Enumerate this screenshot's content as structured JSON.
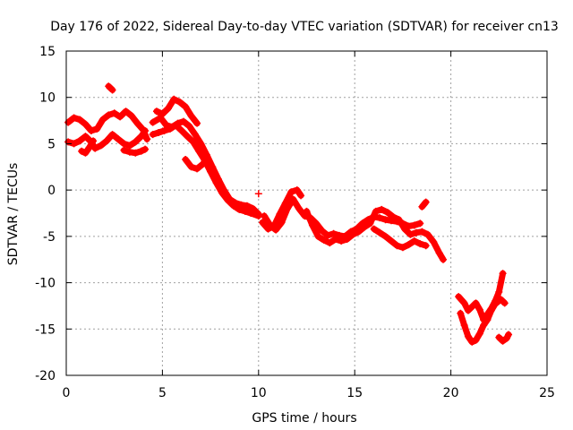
{
  "chart_data": {
    "type": "scatter",
    "title": "Day 176 of 2022, Sidereal Day-to-day VTEC variation (SDTVAR) for receiver cn13",
    "xlabel": "GPS time / hours",
    "ylabel": "SDTVAR / TECUs",
    "xlim": [
      0,
      25
    ],
    "ylim": [
      -20,
      15
    ],
    "xticks": [
      0,
      5,
      10,
      15,
      20,
      25
    ],
    "yticks": [
      15,
      10,
      5,
      0,
      -5,
      -10,
      -15,
      -20
    ],
    "grid": true,
    "marker": "+",
    "series_color": "#ff0000",
    "tracks": [
      [
        [
          0.1,
          7.3
        ],
        [
          0.4,
          7.8
        ],
        [
          0.7,
          7.6
        ],
        [
          1.0,
          7.1
        ],
        [
          1.3,
          6.4
        ],
        [
          1.6,
          6.6
        ],
        [
          1.9,
          7.6
        ],
        [
          2.2,
          8.1
        ],
        [
          2.5,
          8.3
        ],
        [
          2.8,
          7.9
        ],
        [
          3.1,
          8.5
        ],
        [
          3.4,
          8.0
        ],
        [
          3.7,
          7.2
        ],
        [
          4.0,
          6.5
        ],
        [
          4.2,
          5.5
        ]
      ],
      [
        [
          0.1,
          5.2
        ],
        [
          0.4,
          5.0
        ],
        [
          0.7,
          5.3
        ],
        [
          1.0,
          5.8
        ],
        [
          1.3,
          5.2
        ],
        [
          1.5,
          4.5
        ],
        [
          1.8,
          4.8
        ],
        [
          2.1,
          5.3
        ],
        [
          2.4,
          6.0
        ],
        [
          2.7,
          5.5
        ],
        [
          3.0,
          5.0
        ],
        [
          3.3,
          4.8
        ],
        [
          3.6,
          5.2
        ],
        [
          3.9,
          5.8
        ],
        [
          4.1,
          6.4
        ]
      ],
      [
        [
          0.8,
          4.2
        ],
        [
          1.0,
          4.0
        ],
        [
          1.2,
          4.6
        ],
        [
          1.4,
          5.3
        ]
      ],
      [
        [
          2.2,
          11.2
        ],
        [
          2.4,
          10.8
        ]
      ],
      [
        [
          3.0,
          4.3
        ],
        [
          3.3,
          4.1
        ],
        [
          3.6,
          4.0
        ],
        [
          3.9,
          4.2
        ],
        [
          4.1,
          4.4
        ]
      ],
      [
        [
          4.5,
          7.3
        ],
        [
          4.9,
          7.8
        ],
        [
          5.2,
          7.0
        ],
        [
          5.5,
          6.8
        ],
        [
          5.8,
          7.2
        ],
        [
          6.1,
          7.4
        ],
        [
          6.4,
          6.9
        ],
        [
          6.7,
          6.0
        ],
        [
          7.0,
          5.0
        ],
        [
          7.3,
          3.8
        ],
        [
          7.6,
          2.5
        ],
        [
          7.9,
          1.2
        ],
        [
          8.2,
          0.0
        ],
        [
          8.5,
          -1.0
        ],
        [
          8.8,
          -1.4
        ],
        [
          9.1,
          -1.6
        ],
        [
          9.4,
          -1.7
        ],
        [
          9.7,
          -2.0
        ],
        [
          10.0,
          -2.6
        ]
      ],
      [
        [
          4.5,
          6.0
        ],
        [
          4.8,
          6.2
        ],
        [
          5.1,
          6.4
        ],
        [
          5.4,
          6.6
        ],
        [
          5.7,
          7.0
        ],
        [
          6.0,
          6.4
        ],
        [
          6.3,
          5.8
        ],
        [
          6.6,
          5.2
        ],
        [
          6.9,
          4.2
        ],
        [
          7.2,
          3.2
        ],
        [
          7.5,
          2.0
        ],
        [
          7.8,
          0.8
        ],
        [
          8.1,
          -0.3
        ],
        [
          8.4,
          -1.1
        ],
        [
          8.7,
          -1.7
        ],
        [
          9.0,
          -2.1
        ],
        [
          9.3,
          -2.3
        ],
        [
          9.6,
          -2.5
        ],
        [
          10.0,
          -2.8
        ]
      ],
      [
        [
          4.7,
          8.5
        ],
        [
          5.0,
          8.2
        ],
        [
          5.3,
          8.8
        ],
        [
          5.6,
          9.8
        ],
        [
          5.9,
          9.5
        ],
        [
          6.2,
          9.0
        ],
        [
          6.5,
          8.0
        ],
        [
          6.8,
          7.2
        ]
      ],
      [
        [
          6.2,
          3.3
        ],
        [
          6.5,
          2.5
        ],
        [
          6.8,
          2.3
        ],
        [
          7.1,
          2.8
        ],
        [
          7.3,
          3.4
        ]
      ],
      [
        [
          10.0,
          -0.4
        ]
      ],
      [
        [
          10.3,
          -2.8
        ],
        [
          10.6,
          -3.8
        ],
        [
          10.9,
          -4.3
        ],
        [
          11.2,
          -3.5
        ],
        [
          11.5,
          -2.0
        ],
        [
          11.8,
          -1.0
        ],
        [
          12.1,
          -2.0
        ],
        [
          12.4,
          -2.8
        ],
        [
          12.7,
          -3.0
        ],
        [
          13.0,
          -3.6
        ],
        [
          13.3,
          -4.4
        ],
        [
          13.6,
          -4.9
        ],
        [
          13.9,
          -4.7
        ],
        [
          14.2,
          -4.9
        ],
        [
          14.5,
          -5.0
        ],
        [
          14.8,
          -4.5
        ],
        [
          15.1,
          -4.2
        ],
        [
          15.4,
          -3.6
        ],
        [
          15.7,
          -3.2
        ],
        [
          16.0,
          -2.9
        ],
        [
          16.3,
          -3.0
        ],
        [
          16.6,
          -3.2
        ],
        [
          16.9,
          -3.3
        ],
        [
          17.2,
          -3.4
        ],
        [
          17.5,
          -3.6
        ],
        [
          17.8,
          -3.9
        ],
        [
          18.1,
          -3.8
        ],
        [
          18.4,
          -3.6
        ]
      ],
      [
        [
          10.2,
          -3.5
        ],
        [
          10.5,
          -4.2
        ],
        [
          10.8,
          -3.9
        ],
        [
          11.1,
          -2.6
        ],
        [
          11.4,
          -1.4
        ],
        [
          11.7,
          -0.2
        ],
        [
          12.0,
          0.0
        ],
        [
          12.2,
          -0.6
        ]
      ],
      [
        [
          12.5,
          -2.3
        ],
        [
          12.8,
          -3.8
        ],
        [
          13.1,
          -5.0
        ],
        [
          13.4,
          -5.4
        ],
        [
          13.7,
          -5.7
        ],
        [
          14.0,
          -5.3
        ],
        [
          14.3,
          -5.5
        ],
        [
          14.6,
          -5.3
        ],
        [
          14.9,
          -4.8
        ],
        [
          15.2,
          -4.5
        ],
        [
          15.5,
          -4.0
        ],
        [
          15.8,
          -3.6
        ],
        [
          16.1,
          -2.3
        ],
        [
          16.4,
          -2.1
        ],
        [
          16.7,
          -2.4
        ],
        [
          17.0,
          -2.9
        ],
        [
          17.3,
          -3.2
        ],
        [
          17.6,
          -4.2
        ],
        [
          17.9,
          -4.8
        ],
        [
          18.2,
          -4.6
        ],
        [
          18.5,
          -4.5
        ],
        [
          18.8,
          -4.8
        ],
        [
          19.1,
          -5.6
        ],
        [
          19.4,
          -6.8
        ],
        [
          19.6,
          -7.5
        ]
      ],
      [
        [
          16.0,
          -4.2
        ],
        [
          16.3,
          -4.6
        ],
        [
          16.6,
          -5.0
        ],
        [
          16.9,
          -5.5
        ],
        [
          17.2,
          -6.0
        ],
        [
          17.5,
          -6.2
        ],
        [
          17.8,
          -5.9
        ],
        [
          18.1,
          -5.5
        ],
        [
          18.4,
          -5.8
        ],
        [
          18.7,
          -6.0
        ]
      ],
      [
        [
          18.5,
          -1.8
        ],
        [
          18.7,
          -1.3
        ]
      ],
      [
        [
          20.4,
          -11.5
        ],
        [
          20.7,
          -12.2
        ],
        [
          20.9,
          -13.0
        ],
        [
          21.1,
          -12.6
        ],
        [
          21.3,
          -12.2
        ],
        [
          21.5,
          -12.9
        ],
        [
          21.7,
          -14.0
        ],
        [
          21.9,
          -13.4
        ],
        [
          22.1,
          -12.8
        ],
        [
          22.3,
          -12.0
        ],
        [
          22.5,
          -11.0
        ],
        [
          22.7,
          -9.0
        ]
      ],
      [
        [
          20.5,
          -13.3
        ],
        [
          20.7,
          -14.6
        ],
        [
          20.9,
          -15.8
        ],
        [
          21.1,
          -16.4
        ],
        [
          21.3,
          -16.2
        ],
        [
          21.5,
          -15.5
        ],
        [
          21.7,
          -14.6
        ],
        [
          21.9,
          -14.0
        ],
        [
          22.1,
          -13.0
        ],
        [
          22.3,
          -12.3
        ],
        [
          22.6,
          -11.8
        ],
        [
          22.8,
          -12.2
        ]
      ],
      [
        [
          22.5,
          -15.9
        ],
        [
          22.7,
          -16.3
        ],
        [
          22.9,
          -16.0
        ],
        [
          23.0,
          -15.6
        ]
      ]
    ]
  }
}
